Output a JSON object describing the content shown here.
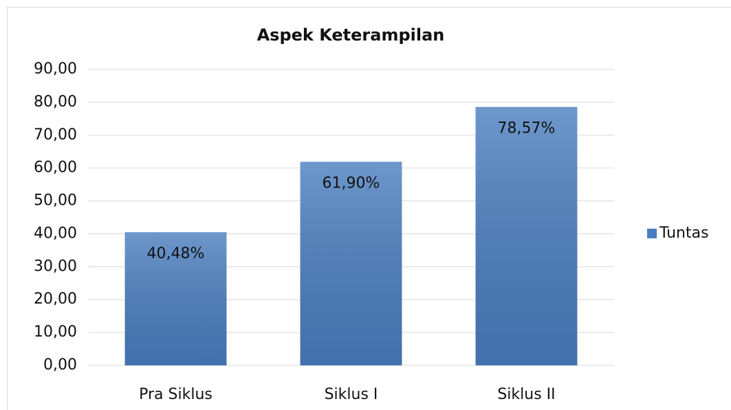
{
  "chart_data": {
    "type": "bar",
    "title": "Aspek Keterampilan",
    "categories": [
      "Pra Siklus",
      "Siklus I",
      "Siklus II"
    ],
    "series": [
      {
        "name": "Tuntas",
        "color": "#4a7ebf",
        "values": [
          40.48,
          61.9,
          78.57
        ],
        "value_labels": [
          "40,48%",
          "61,90%",
          "78,57%"
        ]
      }
    ],
    "ylim": [
      0,
      90
    ],
    "yticks": [
      {
        "value": 0,
        "label": "0,00"
      },
      {
        "value": 10,
        "label": "10,00"
      },
      {
        "value": 20,
        "label": "20,00"
      },
      {
        "value": 30,
        "label": "30,00"
      },
      {
        "value": 40,
        "label": "40,00"
      },
      {
        "value": 50,
        "label": "50,00"
      },
      {
        "value": 60,
        "label": "60,00"
      },
      {
        "value": 70,
        "label": "70,00"
      },
      {
        "value": 80,
        "label": "80,00"
      },
      {
        "value": 90,
        "label": "90,00"
      }
    ],
    "grid": true,
    "legend": "right"
  }
}
